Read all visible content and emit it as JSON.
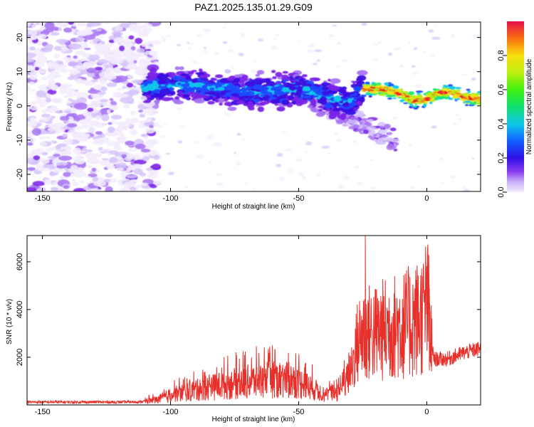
{
  "title": "PAZ1.2025.135.01.29.G09",
  "colors": {
    "snr_line": "#e8302b",
    "spectrum_palette": [
      "#f2ecfd",
      "#d6c4fa",
      "#a874f2",
      "#7a22e6",
      "#3a10e0",
      "#1d4bff",
      "#10c8e8",
      "#1ee86a",
      "#a6f01a",
      "#f5e01a",
      "#f58a14",
      "#e81e1e"
    ]
  },
  "chart_data": [
    {
      "type": "heatmap",
      "title": "PAZ1.2025.135.01.29.G09",
      "xlabel": "Height of straight line (km)",
      "ylabel": "Frequency (Hz)",
      "xlim": [
        -156,
        21
      ],
      "ylim": [
        -25,
        24.5
      ],
      "xticks": [
        -150,
        -100,
        -50,
        0
      ],
      "yticks": [
        -20,
        -10,
        0,
        10,
        20
      ],
      "colorbar": {
        "label": "Normalized spectral amplitude",
        "range": [
          0,
          1
        ],
        "ticks": [
          "0.0",
          "0.2",
          "0.4",
          "0.6",
          "0.8"
        ]
      },
      "dominant_frequency": [
        {
          "x": -108,
          "y": 5.5
        },
        {
          "x": -100,
          "y": 6
        },
        {
          "x": -90,
          "y": 5.5
        },
        {
          "x": -80,
          "y": 5
        },
        {
          "x": -70,
          "y": 4
        },
        {
          "x": -60,
          "y": 4
        },
        {
          "x": -52,
          "y": 5
        },
        {
          "x": -45,
          "y": 4
        },
        {
          "x": -40,
          "y": 3
        },
        {
          "x": -35,
          "y": 1.5
        },
        {
          "x": -30,
          "y": 1
        },
        {
          "x": -25,
          "y": 5
        },
        {
          "x": -20,
          "y": 5
        },
        {
          "x": -15,
          "y": 4.5
        },
        {
          "x": -10,
          "y": 3.5
        },
        {
          "x": -5,
          "y": 1.5
        },
        {
          "x": 0,
          "y": 2
        },
        {
          "x": 5,
          "y": 4
        },
        {
          "x": 10,
          "y": 4
        },
        {
          "x": 15,
          "y": 2.5
        },
        {
          "x": 20,
          "y": 2
        }
      ]
    },
    {
      "type": "line",
      "xlabel": "Height of straight line (km)",
      "ylabel": "SNR (10 * v/v)",
      "xlim": [
        -156,
        21
      ],
      "ylim": [
        0,
        7100
      ],
      "xticks": [
        -150,
        -100,
        -50,
        0
      ],
      "yticks": [
        2000,
        4000,
        6000
      ],
      "envelope": [
        {
          "x": -156,
          "y": 120
        },
        {
          "x": -120,
          "y": 120
        },
        {
          "x": -112,
          "y": 130
        },
        {
          "x": -105,
          "y": 220
        },
        {
          "x": -100,
          "y": 420
        },
        {
          "x": -90,
          "y": 620
        },
        {
          "x": -80,
          "y": 820
        },
        {
          "x": -70,
          "y": 970
        },
        {
          "x": -60,
          "y": 1070
        },
        {
          "x": -52,
          "y": 1020
        },
        {
          "x": -45,
          "y": 720
        },
        {
          "x": -40,
          "y": 420
        },
        {
          "x": -35,
          "y": 520
        },
        {
          "x": -30,
          "y": 1220
        },
        {
          "x": -27,
          "y": 2620
        },
        {
          "x": -25,
          "y": 3020
        },
        {
          "x": -20,
          "y": 3020
        },
        {
          "x": -15,
          "y": 3220
        },
        {
          "x": -10,
          "y": 3320
        },
        {
          "x": -5,
          "y": 3520
        },
        {
          "x": -1,
          "y": 3820
        },
        {
          "x": 0,
          "y": 4420
        },
        {
          "x": 1,
          "y": 3620
        },
        {
          "x": 2,
          "y": 2320
        },
        {
          "x": 3,
          "y": 1920
        },
        {
          "x": 8,
          "y": 1920
        },
        {
          "x": 14,
          "y": 2170
        },
        {
          "x": 21,
          "y": 2370
        }
      ],
      "peaks": [
        {
          "x": -24,
          "y": 7100
        },
        {
          "x": 1,
          "y": 4900
        },
        {
          "x": -9.5,
          "y": 4450
        }
      ]
    }
  ]
}
